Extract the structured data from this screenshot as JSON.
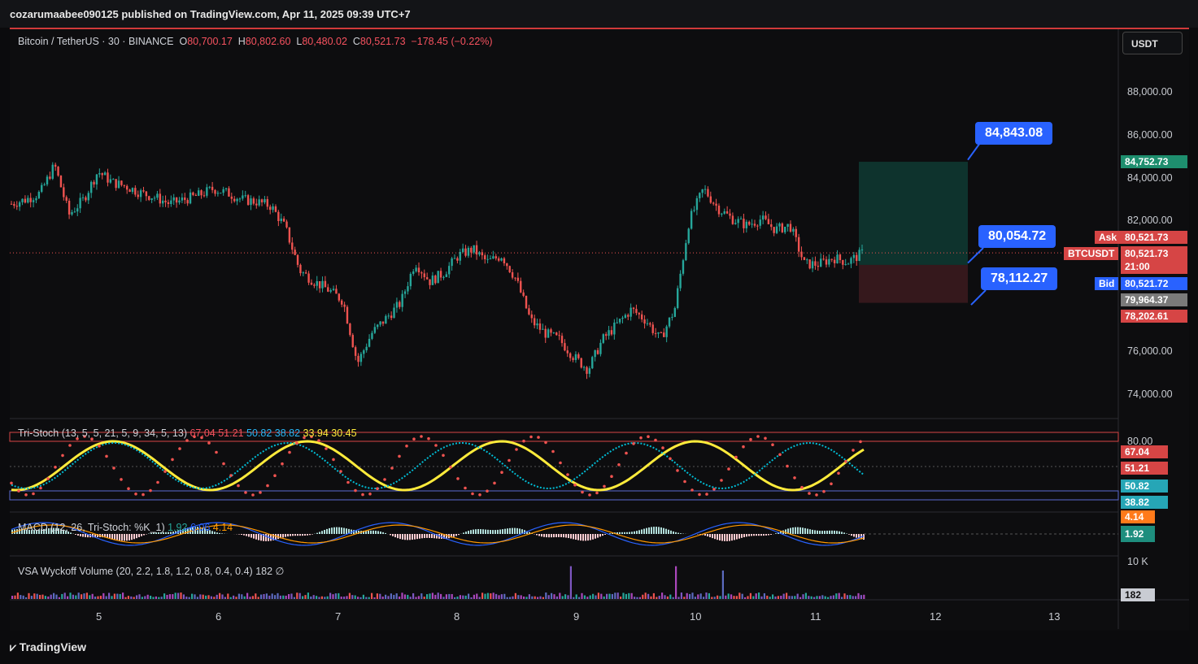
{
  "header": {
    "publisher": "cozarumaabee090125 published on TradingView.com, Apr 11, 2025 09:39 UTC+7"
  },
  "symbol": {
    "name": "Bitcoin / TetherUS · 30 · BINANCE",
    "o_label": "O",
    "o": "80,700.17",
    "h_label": "H",
    "h": "80,802.60",
    "l_label": "L",
    "l": "80,480.02",
    "c_label": "C",
    "c": "80,521.73",
    "change": "−178.45 (−0.22%)"
  },
  "currency_button": "USDT",
  "price_axis": [
    "88,000.00",
    "86,000.00",
    "84,000.00",
    "82,000.00",
    "76,000.00",
    "74,000.00"
  ],
  "tags": {
    "tp": "84,752.73",
    "ask_label": "Ask",
    "ask": "80,521.73",
    "symbol_tag": "BTCUSDT",
    "last": "80,521.73",
    "countdown": "21:00",
    "bid_label": "Bid",
    "bid": "80,521.72",
    "entry": "79,964.37",
    "sl": "78,202.61"
  },
  "bubbles": {
    "top": "84,843.08",
    "mid": "80,054.72",
    "bottom": "78,112.27"
  },
  "stoch": {
    "title": "Tri-Stoch (13, 5, 5, 21, 5, 9, 34, 5, 13)",
    "v1": "67.04",
    "v2": "51.21",
    "v3": "50.82",
    "v4": "38.82",
    "v5": "33.94",
    "v6": "30.45",
    "axis_top": "80.00",
    "tags": [
      "67.04",
      "51.21",
      "50.82",
      "38.82"
    ]
  },
  "macd": {
    "title": "MACD (12, 26, Tri-Stoch: %K_1)",
    "v1": "1.92",
    "v2": "6.06",
    "v3": "4.14",
    "tags": [
      "4.14",
      "1.92"
    ]
  },
  "volume": {
    "title": "VSA Wyckoff Volume (20, 2.2, 1.8, 1.2, 0.8, 0.4, 0.4)",
    "v": "182",
    "sym": "∅",
    "axis": "10 K",
    "tag": "182"
  },
  "time_axis": [
    "5",
    "6",
    "7",
    "8",
    "9",
    "10",
    "11",
    "12",
    "13"
  ],
  "brand": "TradingView",
  "colors": {
    "up": "#26a69a",
    "down": "#ef5350",
    "bubble": "#2962ff",
    "yellow": "#ffeb3b",
    "cyan": "#00bcd4"
  },
  "chart_data": {
    "type": "candlestick",
    "x_labels": [
      "5",
      "6",
      "7",
      "8",
      "9",
      "10",
      "11",
      "12",
      "13"
    ],
    "y_range": [
      73000,
      89000
    ],
    "path_close": [
      82800,
      83000,
      83300,
      84600,
      82300,
      83000,
      84300,
      83800,
      83600,
      83300,
      83100,
      82800,
      83000,
      83200,
      83500,
      83300,
      83000,
      82900,
      82700,
      81700,
      79700,
      79200,
      78800,
      78300,
      75400,
      76800,
      77500,
      78200,
      80100,
      79200,
      79600,
      80400,
      80700,
      80100,
      80400,
      79300,
      77400,
      76800,
      76500,
      75700,
      75100,
      76500,
      77200,
      77900,
      77400,
      76500,
      77900,
      82000,
      83500,
      82600,
      82100,
      81800,
      82100,
      81600,
      81800,
      80000,
      80000,
      80300,
      80100,
      80500
    ]
  }
}
